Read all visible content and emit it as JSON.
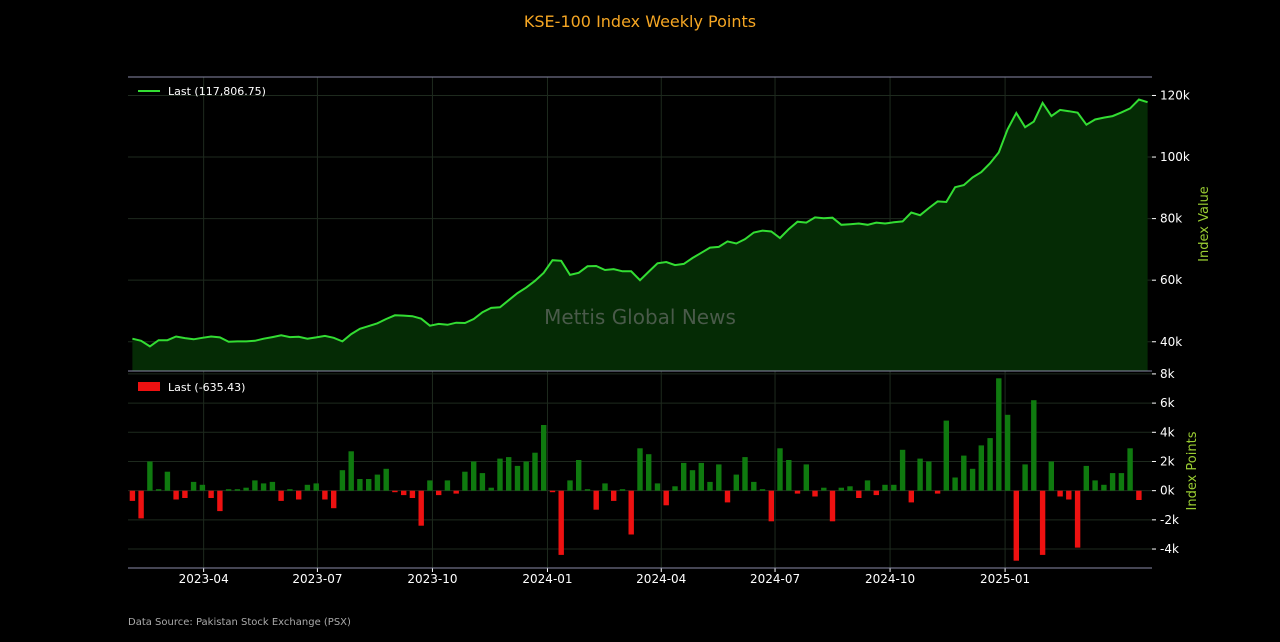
{
  "title": "KSE-100 Index Weekly Points",
  "source": "Data Source: Pakistan Stock Exchange (PSX)",
  "watermark": "Mettis Global News",
  "colors": {
    "background": "#000000",
    "title": "#f5a623",
    "line": "#33dd33",
    "area": "#052b05",
    "bar_up": "#0f7a0f",
    "bar_down": "#ee1111",
    "ylabel": "#9acd32",
    "axis_line": "#8a8aa8",
    "grid": "#1e2a1e",
    "text": "#ffffff"
  },
  "chart_data": [
    {
      "type": "area",
      "title": "KSE-100 Index Weekly Points",
      "ylabel": "Index Value",
      "ylim": [
        30500,
        126000
      ],
      "yticks": [
        40000,
        60000,
        80000,
        100000,
        120000
      ],
      "ytick_labels": [
        "40k",
        "60k",
        "80k",
        "100k",
        "120k"
      ],
      "legend": "Last (117,806.75)",
      "legend_loc": "top-left",
      "grid": true,
      "x_start": "2023-02-03",
      "x_step_days": 7,
      "series": [
        {
          "name": "Last (117,806.75)",
          "values": [
            41000,
            40300,
            38500,
            40500,
            40500,
            41700,
            41200,
            40800,
            41300,
            41700,
            41400,
            40000,
            40100,
            40100,
            40300,
            41000,
            41500,
            42100,
            41500,
            41600,
            41000,
            41400,
            41900,
            41300,
            40100,
            42500,
            44200,
            45100,
            46000,
            47400,
            48600,
            48500,
            48300,
            47500,
            45200,
            45800,
            45500,
            46200,
            46100,
            47400,
            49600,
            51000,
            51200,
            53500,
            55800,
            57600,
            59800,
            62400,
            66500,
            66300,
            61700,
            62400,
            64500,
            64600,
            63300,
            63600,
            62900,
            62900,
            60000,
            62800,
            65500,
            65900,
            64900,
            65300,
            67200,
            68900,
            70600,
            70800,
            72600,
            71900,
            73300,
            75500,
            76100,
            75800,
            73700,
            76600,
            79000,
            78700,
            80400,
            80100,
            80300,
            78000,
            78200,
            78400,
            78000,
            78700,
            78400,
            78800,
            79100,
            82000,
            81100,
            83400,
            85600,
            85400,
            90200,
            90900,
            93400,
            95100,
            98000,
            101500,
            109000,
            114300,
            109700,
            111500,
            117600,
            113300,
            115300,
            114900,
            114400,
            110500,
            112200,
            112800,
            113300,
            114500,
            115800,
            118700,
            117807
          ]
        }
      ]
    },
    {
      "type": "bar",
      "ylabel": "Index Points",
      "ylim": [
        -5300,
        8200
      ],
      "yticks": [
        -4000,
        -2000,
        0,
        2000,
        4000,
        6000,
        8000
      ],
      "ytick_labels": [
        "-4k",
        "-2k",
        "0k",
        "2k",
        "4k",
        "6k",
        "8k"
      ],
      "legend": "Last (-635.43)",
      "legend_loc": "top-left",
      "grid": true,
      "x_start": "2023-02-03",
      "x_step_days": 7,
      "x_ticks": [
        "2023-04",
        "2023-07",
        "2023-10",
        "2024-01",
        "2024-04",
        "2024-07",
        "2024-10",
        "2025-01"
      ],
      "series": [
        {
          "name": "Last (-635.43)",
          "values": [
            -700,
            -1900,
            2000,
            100,
            1300,
            -600,
            -500,
            600,
            400,
            -500,
            -1400,
            100,
            100,
            200,
            700,
            500,
            600,
            -700,
            100,
            -600,
            400,
            500,
            -600,
            -1200,
            1400,
            2700,
            800,
            800,
            1100,
            1500,
            -100,
            -300,
            -500,
            -2400,
            700,
            -300,
            700,
            -200,
            1300,
            2000,
            1200,
            200,
            2200,
            2300,
            1700,
            2000,
            2600,
            4500,
            -100,
            -4400,
            700,
            2100,
            100,
            -1300,
            500,
            -700,
            100,
            -3000,
            2900,
            2500,
            500,
            -1000,
            300,
            1900,
            1400,
            1900,
            600,
            1800,
            -800,
            1100,
            2300,
            600,
            100,
            -2100,
            2900,
            2100,
            -200,
            1800,
            -400,
            200,
            -2100,
            200,
            300,
            -500,
            700,
            -300,
            400,
            400,
            2800,
            -800,
            2200,
            2000,
            -200,
            4800,
            900,
            2400,
            1500,
            3100,
            3600,
            7700,
            5200,
            -4800,
            1800,
            6200,
            -4400,
            2000,
            -400,
            -600,
            -3900,
            1700,
            700,
            400,
            1200,
            1200,
            2900,
            -635
          ]
        }
      ]
    }
  ]
}
